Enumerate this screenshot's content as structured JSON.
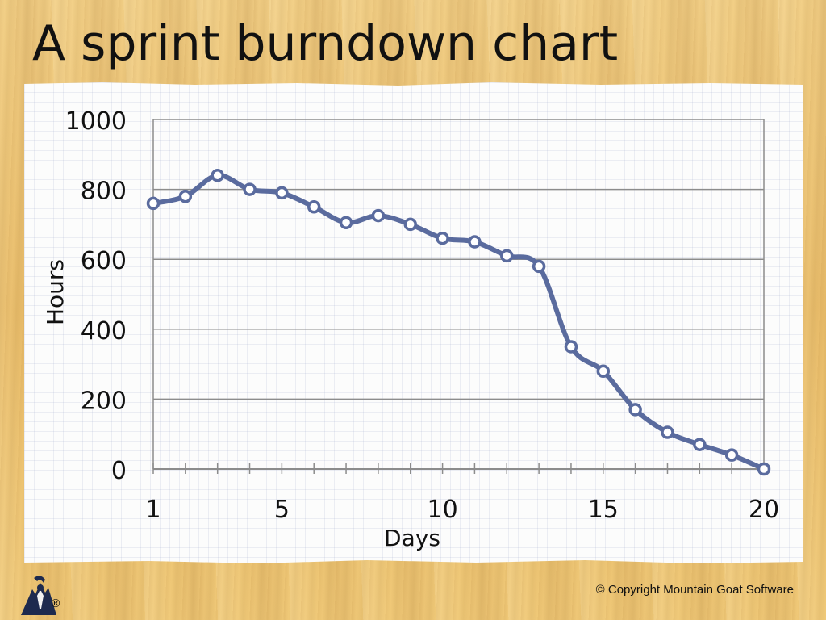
{
  "slide": {
    "title": "A sprint burndown chart",
    "copyright": "© Copyright Mountain Goat Software",
    "logo_icon": "mountain-goat-logo-icon",
    "logo_mark": "®"
  },
  "colors": {
    "series": "#5a6b9e",
    "grid": "#8c8c8c",
    "wood": "#efc97b",
    "paper": "#fcfcfc"
  },
  "chart_data": {
    "type": "line",
    "title": "",
    "xlabel": "Days",
    "ylabel": "Hours",
    "x": [
      1,
      2,
      3,
      4,
      5,
      6,
      7,
      8,
      9,
      10,
      11,
      12,
      13,
      14,
      15,
      16,
      17,
      18,
      19,
      20
    ],
    "x_tick_labels": [
      1,
      5,
      10,
      15,
      20
    ],
    "xlim": [
      1,
      20
    ],
    "ylim": [
      0,
      1000
    ],
    "y_ticks": [
      0,
      200,
      400,
      600,
      800,
      1000
    ],
    "grid": true,
    "legend": "none",
    "series": [
      {
        "values": [
          760,
          780,
          840,
          800,
          790,
          750,
          705,
          725,
          700,
          660,
          650,
          610,
          580,
          350,
          280,
          170,
          105,
          70,
          40,
          0
        ],
        "color": "#5a6b9e",
        "markers": true
      }
    ]
  }
}
